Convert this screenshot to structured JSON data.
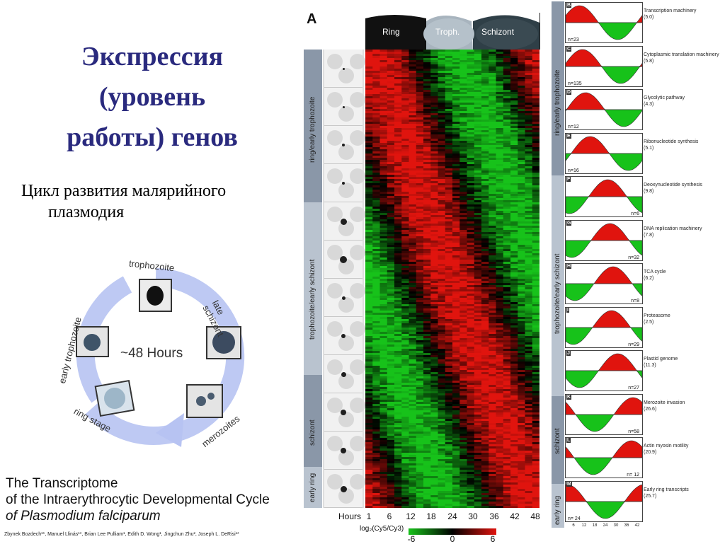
{
  "slide": {
    "title_lines": [
      "Экспрессия",
      "(уровень",
      "работы) генов"
    ],
    "subtitle_lines": [
      "Цикл развития малярийного",
      "плазмодия"
    ],
    "reference_lines": [
      "The Transcriptome",
      "of the Intraerythrocytic Developmental Cycle",
      "of Plasmodium falciparum"
    ],
    "authors": "Zbynek Bozdech¹*, Manuel Llinás¹*, Brian Lee Pulliam¹, Edith D. Wong¹, Jingchun Zhu², Joseph L. DeRisi¹*"
  },
  "cycle_diagram": {
    "center_label": "~48 Hours",
    "stages": [
      "trophozoite",
      "late schizont",
      "merozoites",
      "ring stage",
      "early trophozoite"
    ]
  },
  "figure": {
    "panel_letter": "A",
    "header_stages": [
      "Ring",
      "Troph.",
      "Schizont"
    ],
    "stage_strip": [
      "ring/early trophozoite",
      "trophozoite/early schizont",
      "schizont",
      "early ring"
    ],
    "hours_label": "Hours",
    "hour_ticks": [
      "1",
      "6",
      "12",
      "18",
      "24",
      "30",
      "36",
      "42",
      "48"
    ],
    "scale_label": "log₂(Cy5/Cy3)",
    "scale_ticks": [
      "-6",
      "0",
      "6"
    ],
    "colors": {
      "induced": "#e0140e",
      "repressed": "#17c21a",
      "neutral": "#000000"
    }
  },
  "right_panels": {
    "strip_labels": [
      "ring/early trophozoite",
      "trophozoite/early schizont",
      "schizont",
      "early ring"
    ],
    "axis_ticks": [
      "6",
      "12",
      "18",
      "24",
      "30",
      "36",
      "42"
    ],
    "panels": [
      {
        "letter": "B",
        "label": "Transcription machinery",
        "value": "(5.0)",
        "n": "n=23",
        "peak": 0.18
      },
      {
        "letter": "C",
        "label": "Cytoplasmic translation machinery",
        "value": "(5.8)",
        "n": "n=135",
        "peak": 0.22
      },
      {
        "letter": "D",
        "label": "Glycolytic pathway",
        "value": "(4.3)",
        "n": "n=12",
        "peak": 0.26
      },
      {
        "letter": "E",
        "label": "Ribonucleotide synthesis",
        "value": "(5.1)",
        "n": "n=16",
        "peak": 0.32
      },
      {
        "letter": "F",
        "label": "Deoxynucleotide synthesis",
        "value": "(9.8)",
        "n": "n=6",
        "peak": 0.55
      },
      {
        "letter": "G",
        "label": "DNA replication machinery",
        "value": "(7.8)",
        "n": "n=32",
        "peak": 0.58
      },
      {
        "letter": "H",
        "label": "TCA cycle",
        "value": "(6.2)",
        "n": "n=8",
        "peak": 0.62
      },
      {
        "letter": "I",
        "label": "Proteasome",
        "value": "(2.5)",
        "n": "n=29",
        "peak": 0.6
      },
      {
        "letter": "J",
        "label": "Plastid genome",
        "value": "(11.3)",
        "n": "n=27",
        "peak": 0.68
      },
      {
        "letter": "K",
        "label": "Merozoite invasion",
        "value": "(26.6)",
        "n": "n=58",
        "peak": 0.88
      },
      {
        "letter": "L",
        "label": "Actin myosin motility",
        "value": "(20.9)",
        "n": "n= 12",
        "peak": 0.86
      },
      {
        "letter": "M",
        "label": "Early ring transcripts",
        "value": "(25.7)",
        "n": "n= 24",
        "peak": 0.02
      }
    ]
  }
}
